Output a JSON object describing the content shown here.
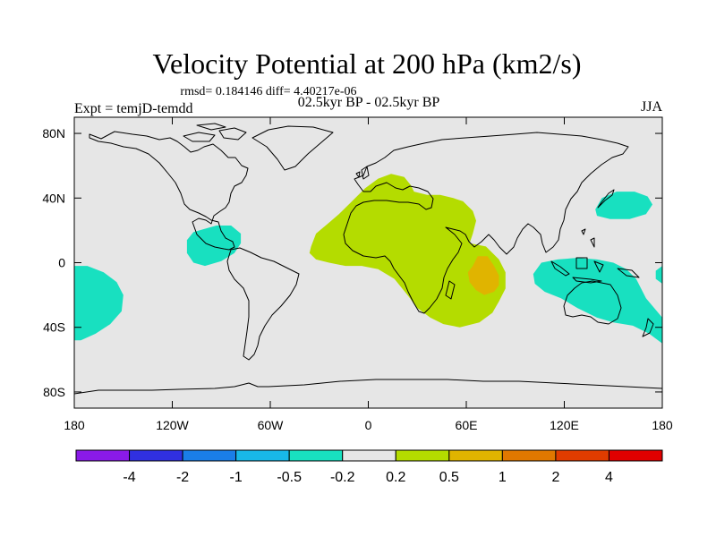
{
  "chart_data": {
    "type": "heatmap",
    "title": "Velocity Potential at 200 hPa (km2/s)",
    "stats_text": "rmsd= 0.184146 diff= 4.40217e-06",
    "left_label": "Expt = temjD-temdd",
    "center_label": "02.5kyr BP - 02.5kyr BP",
    "right_label": "JJA",
    "projection": "cylindrical equidistant",
    "x_range": [
      -180,
      180
    ],
    "y_range": [
      -90,
      90
    ],
    "x_ticks": [
      {
        "value": -180,
        "label": "180"
      },
      {
        "value": -120,
        "label": "120W"
      },
      {
        "value": -60,
        "label": "60W"
      },
      {
        "value": 0,
        "label": "0"
      },
      {
        "value": 60,
        "label": "60E"
      },
      {
        "value": 120,
        "label": "120E"
      },
      {
        "value": 180,
        "label": "180"
      }
    ],
    "y_ticks": [
      {
        "value": 80,
        "label": "80N"
      },
      {
        "value": 40,
        "label": "40N"
      },
      {
        "value": 0,
        "label": "0"
      },
      {
        "value": -40,
        "label": "40S"
      },
      {
        "value": -80,
        "label": "80S"
      }
    ],
    "colorbar": {
      "levels": [
        "-4",
        "-2",
        "-1",
        "-0.5",
        "-0.2",
        "0.2",
        "0.5",
        "1",
        "2",
        "4"
      ],
      "colors": [
        "#8a1ae8",
        "#3030e0",
        "#1a7ee8",
        "#18b8e8",
        "#18e0c0",
        "#e6e6e6",
        "#b4dc00",
        "#e0b400",
        "#e07800",
        "#e03c00",
        "#e00000"
      ]
    },
    "regions": [
      {
        "name": "north-africa-arabia-positive",
        "level": "0.2 to 0.5",
        "color": "#b4dc00",
        "polygon": [
          [
            -35,
            10
          ],
          [
            -32,
            18
          ],
          [
            -25,
            24
          ],
          [
            -18,
            30
          ],
          [
            -10,
            38
          ],
          [
            -2,
            46
          ],
          [
            6,
            52
          ],
          [
            14,
            55
          ],
          [
            22,
            53
          ],
          [
            26,
            48
          ],
          [
            28,
            44
          ],
          [
            36,
            42
          ],
          [
            44,
            42
          ],
          [
            52,
            40
          ],
          [
            58,
            38
          ],
          [
            64,
            32
          ],
          [
            66,
            26
          ],
          [
            64,
            18
          ],
          [
            62,
            12
          ],
          [
            72,
            10
          ],
          [
            80,
            2
          ],
          [
            84,
            -6
          ],
          [
            84,
            -16
          ],
          [
            80,
            -24
          ],
          [
            76,
            -31
          ],
          [
            68,
            -37
          ],
          [
            56,
            -40
          ],
          [
            46,
            -38
          ],
          [
            38,
            -34
          ],
          [
            30,
            -28
          ],
          [
            24,
            -20
          ],
          [
            16,
            -10
          ],
          [
            6,
            -4
          ],
          [
            -4,
            -2
          ],
          [
            -14,
            -2
          ],
          [
            -24,
            0
          ],
          [
            -32,
            2
          ],
          [
            -36,
            6
          ]
        ]
      },
      {
        "name": "indian-ocean-positive-core",
        "level": "0.5 to 1",
        "color": "#e0b400",
        "polygon": [
          [
            64,
            -2
          ],
          [
            67,
            4
          ],
          [
            73,
            4
          ],
          [
            77,
            -2
          ],
          [
            80,
            -8
          ],
          [
            80,
            -14
          ],
          [
            77,
            -18
          ],
          [
            71,
            -20
          ],
          [
            66,
            -17
          ],
          [
            62,
            -12
          ],
          [
            61,
            -6
          ]
        ]
      },
      {
        "name": "central-america-negative",
        "level": "-0.5 to -0.2",
        "color": "#18e0c0",
        "polygon": [
          [
            -111,
            14
          ],
          [
            -107,
            19
          ],
          [
            -100,
            21
          ],
          [
            -93,
            23
          ],
          [
            -84,
            23
          ],
          [
            -78,
            18
          ],
          [
            -78,
            12
          ],
          [
            -82,
            6
          ],
          [
            -90,
            1
          ],
          [
            -100,
            -2
          ],
          [
            -107,
            0
          ],
          [
            -111,
            6
          ]
        ]
      },
      {
        "name": "south-pacific-negative",
        "level": "-0.5 to -0.2",
        "color": "#18e0c0",
        "polygon": [
          [
            -180,
            -2
          ],
          [
            -172,
            -2
          ],
          [
            -162,
            -6
          ],
          [
            -154,
            -12
          ],
          [
            -150,
            -20
          ],
          [
            -151,
            -30
          ],
          [
            -158,
            -38
          ],
          [
            -167,
            -44
          ],
          [
            -176,
            -48
          ],
          [
            -180,
            -48
          ]
        ]
      },
      {
        "name": "north-pacific-negative",
        "level": "-0.5 to -0.2",
        "color": "#18e0c0",
        "polygon": [
          [
            139,
            33
          ],
          [
            143,
            40
          ],
          [
            152,
            44
          ],
          [
            163,
            44
          ],
          [
            171,
            41
          ],
          [
            174,
            36
          ],
          [
            170,
            30
          ],
          [
            160,
            27
          ],
          [
            148,
            27
          ],
          [
            140,
            29
          ]
        ]
      },
      {
        "name": "maritime-continent-negative",
        "level": "-0.5 to -0.2",
        "color": "#18e0c0",
        "polygon": [
          [
            101,
            -7
          ],
          [
            106,
            0
          ],
          [
            116,
            2
          ],
          [
            128,
            3
          ],
          [
            140,
            2
          ],
          [
            150,
            0
          ],
          [
            158,
            -4
          ],
          [
            164,
            -10
          ],
          [
            170,
            -22
          ],
          [
            180,
            -34
          ],
          [
            180,
            -50
          ],
          [
            172,
            -44
          ],
          [
            162,
            -39
          ],
          [
            150,
            -37
          ],
          [
            140,
            -34
          ],
          [
            128,
            -28
          ],
          [
            118,
            -22
          ],
          [
            108,
            -18
          ],
          [
            102,
            -13
          ]
        ]
      },
      {
        "name": "dateline-east-negative",
        "level": "-0.5 to -0.2",
        "color": "#18e0c0",
        "polygon": [
          [
            180,
            -2
          ],
          [
            176,
            -5
          ],
          [
            176,
            -10
          ],
          [
            180,
            -13
          ]
        ]
      }
    ]
  }
}
